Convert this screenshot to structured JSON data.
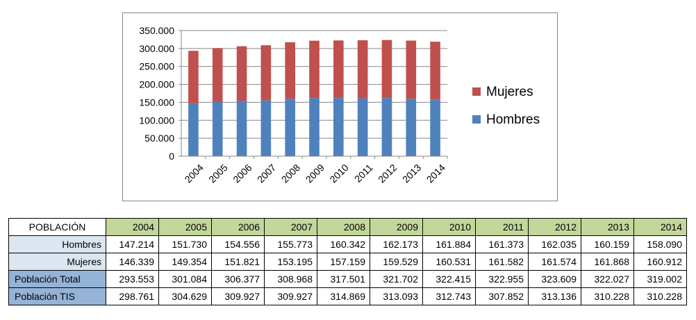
{
  "chart_data": {
    "type": "bar",
    "stacked": true,
    "categories": [
      "2004",
      "2005",
      "2006",
      "2007",
      "2008",
      "2009",
      "2010",
      "2011",
      "2012",
      "2013",
      "2014"
    ],
    "series": [
      {
        "name": "Hombres",
        "color": "#4f81bd",
        "values": [
          147214,
          151730,
          154556,
          155773,
          160342,
          162173,
          161884,
          161373,
          162035,
          160159,
          158090
        ]
      },
      {
        "name": "Mujeres",
        "color": "#c0504d",
        "values": [
          146339,
          149354,
          151821,
          153195,
          157159,
          159529,
          160531,
          161582,
          161574,
          161868,
          160912
        ]
      }
    ],
    "ylim": [
      0,
      350000
    ],
    "y_ticks": [
      0,
      50000,
      100000,
      150000,
      200000,
      250000,
      300000,
      350000
    ],
    "y_tick_labels": [
      "0",
      "50.000",
      "100.000",
      "150.000",
      "200.000",
      "250.000",
      "300.000",
      "350.000"
    ],
    "grid": "horizontal",
    "legend_position": "right",
    "legend_order": [
      "Mujeres",
      "Hombres"
    ]
  },
  "table": {
    "header_label": "POBLACIÓN",
    "years": [
      "2004",
      "2005",
      "2006",
      "2007",
      "2008",
      "2009",
      "2010",
      "2011",
      "2012",
      "2013",
      "2014"
    ],
    "rows": [
      {
        "label": "Hombres",
        "style": "light",
        "values": [
          "147.214",
          "151.730",
          "154.556",
          "155.773",
          "160.342",
          "162.173",
          "161.884",
          "161.373",
          "162.035",
          "160.159",
          "158.090"
        ]
      },
      {
        "label": "Mujeres",
        "style": "light",
        "values": [
          "146.339",
          "149.354",
          "151.821",
          "153.195",
          "157.159",
          "159.529",
          "160.531",
          "161.582",
          "161.574",
          "161.868",
          "160.912"
        ]
      },
      {
        "label": "Población Total",
        "style": "dark",
        "values": [
          "293.553",
          "301.084",
          "306.377",
          "308.968",
          "317.501",
          "321.702",
          "322.415",
          "322.955",
          "323.609",
          "322.027",
          "319.002"
        ]
      },
      {
        "label": "Población TIS",
        "style": "dark",
        "values": [
          "298.761",
          "304.629",
          "309.927",
          "309.927",
          "314.869",
          "313.093",
          "312.743",
          "307.852",
          "313.136",
          "310.228",
          "310.228"
        ]
      }
    ],
    "colors": {
      "year_header": "#c4d79b",
      "light_label": "#dce6f1",
      "dark_label": "#95b3d7"
    }
  }
}
